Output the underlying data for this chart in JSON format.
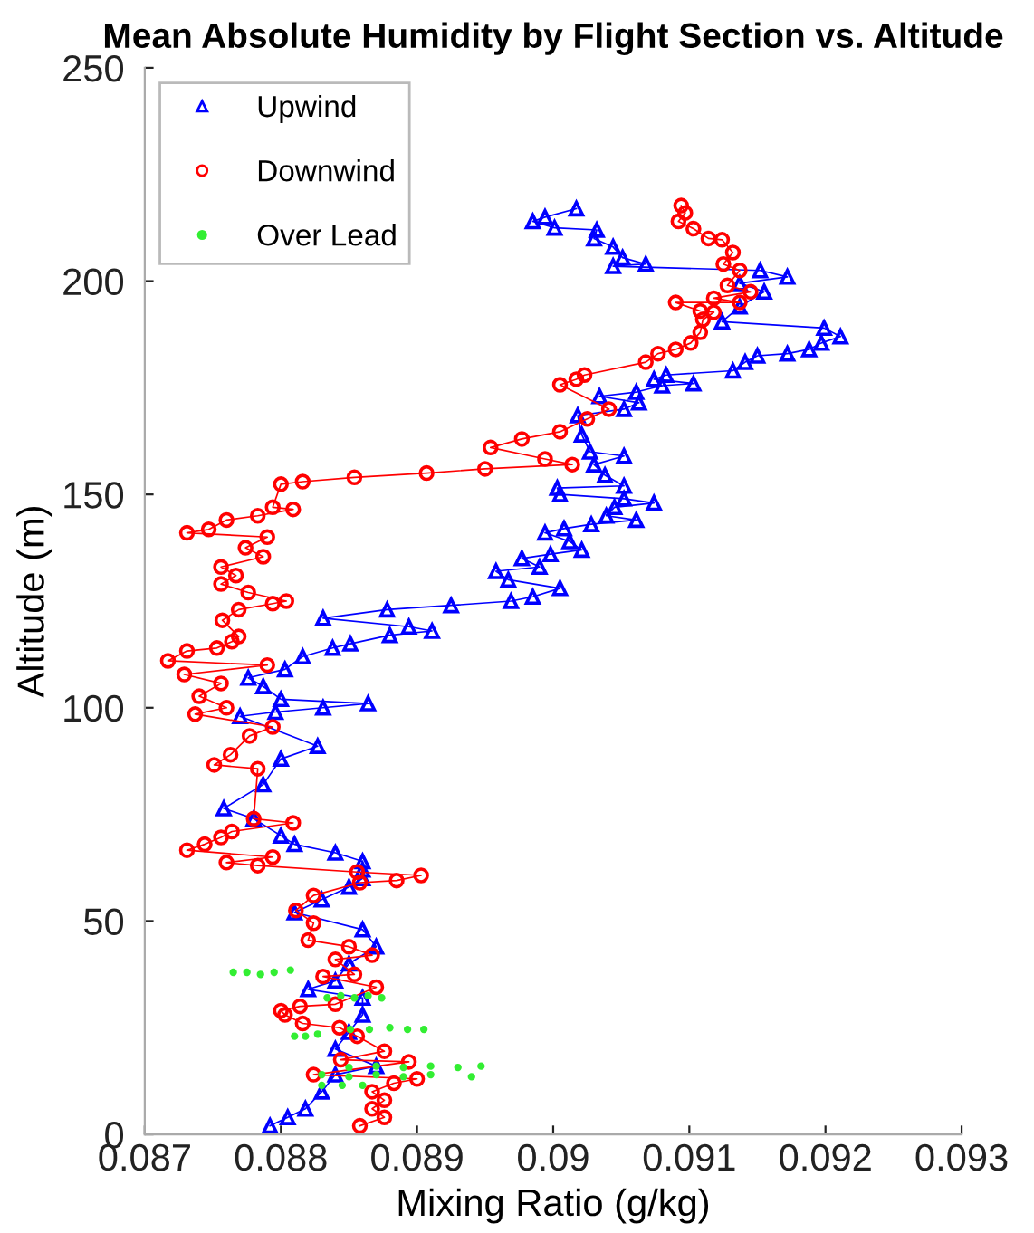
{
  "chart_data": {
    "type": "line",
    "title": "Mean Absolute Humidity by Flight Section vs. Altitude",
    "xlabel": "Mixing Ratio (g/kg)",
    "ylabel": "Altitude (m)",
    "xlim": [
      0.087,
      0.093
    ],
    "xticks": [
      0.087,
      0.088,
      0.089,
      0.09,
      0.091,
      0.092,
      0.093
    ],
    "ylim": [
      0,
      250
    ],
    "yticks": [
      0,
      50,
      100,
      150,
      200,
      250
    ],
    "grid": false,
    "legend": "top left",
    "series": [
      {
        "name": "Upwind",
        "marker": "triangle",
        "color": "#0000ff",
        "x": [
          0.08792,
          0.08805,
          0.08818,
          0.0883,
          0.0884,
          0.0887,
          0.0884,
          0.0885,
          0.0886,
          0.0886,
          0.0882,
          0.0884,
          0.0885,
          0.0887,
          0.0886,
          0.0881,
          0.0883,
          0.0885,
          0.0886,
          0.0886,
          0.0886,
          0.0884,
          0.0881,
          0.088,
          0.0878,
          0.08758,
          0.08787,
          0.088,
          0.08827,
          0.0877,
          0.08796,
          0.08831,
          0.08864,
          0.088,
          0.08787,
          0.08776,
          0.08803,
          0.08816,
          0.08838,
          0.08851,
          0.0888,
          0.08911,
          0.08894,
          0.08831,
          0.08878,
          0.08925,
          0.08969,
          0.08985,
          0.09005,
          0.08967,
          0.08958,
          0.0899,
          0.08977,
          0.08998,
          0.09021,
          0.09012,
          0.08994,
          0.09008,
          0.09028,
          0.09061,
          0.09039,
          0.09045,
          0.09074,
          0.09052,
          0.09005,
          0.09003,
          0.09052,
          0.09038,
          0.0903,
          0.09052,
          0.09027,
          0.09021,
          0.09018,
          0.09052,
          0.09063,
          0.09034,
          0.09061,
          0.0908,
          0.09103,
          0.09074,
          0.09083,
          0.09132,
          0.09141,
          0.0915,
          0.09172,
          0.09188,
          0.09197,
          0.09211,
          0.09199,
          0.09124,
          0.09137,
          0.09155,
          0.09137,
          0.09172,
          0.09152,
          0.09044,
          0.09068,
          0.09051,
          0.09044,
          0.0903,
          0.09032,
          0.09001,
          0.08985,
          0.08994,
          0.09017
        ],
        "values": [
          2,
          4,
          6,
          10,
          14,
          16,
          20,
          24,
          28,
          32,
          34,
          36,
          40,
          44,
          48,
          52,
          55,
          58,
          60,
          62,
          64,
          66,
          68,
          70,
          74,
          76.4,
          82,
          88,
          91,
          98,
          99,
          100,
          101,
          102,
          105,
          107,
          109,
          112,
          114,
          115,
          117,
          118,
          119,
          121,
          123,
          124,
          125,
          126,
          128,
          130,
          132,
          133,
          135,
          136,
          137,
          139,
          141,
          142,
          143,
          144,
          145,
          147,
          148,
          149,
          150,
          151.5,
          152,
          154.5,
          157,
          159,
          160,
          164,
          168.5,
          170,
          171.5,
          173,
          174,
          175.5,
          176,
          177,
          178,
          179,
          181,
          182.5,
          183,
          184,
          185.5,
          187,
          189,
          190.5,
          194,
          197.5,
          199.5,
          201,
          202.5,
          203.5,
          204,
          205.5,
          208,
          210,
          212,
          212.5,
          214,
          215,
          217
        ]
      },
      {
        "name": "Downwind",
        "marker": "circle",
        "color": "#ff0000",
        "x": [
          0.08858,
          0.08876,
          0.08867,
          0.08876,
          0.08867,
          0.08883,
          0.089,
          0.08824,
          0.08894,
          0.08844,
          0.08876,
          0.08856,
          0.08843,
          0.08816,
          0.08803,
          0.088,
          0.08814,
          0.0884,
          0.0887,
          0.08831,
          0.08854,
          0.0884,
          0.08867,
          0.0885,
          0.0882,
          0.08824,
          0.08811,
          0.08824,
          0.08858,
          0.08885,
          0.08903,
          0.08856,
          0.08783,
          0.0876,
          0.08794,
          0.08731,
          0.08744,
          0.08756,
          0.08764,
          0.08809,
          0.0878,
          0.08783,
          0.08751,
          0.08763,
          0.08777,
          0.08794,
          0.08737,
          0.0876,
          0.0874,
          0.08756,
          0.08729,
          0.0879,
          0.08717,
          0.08731,
          0.08753,
          0.08764,
          0.08769,
          0.08757,
          0.08769,
          0.08794,
          0.08804,
          0.08776,
          0.08756,
          0.08767,
          0.08756,
          0.08787,
          0.08774,
          0.0879,
          0.08731,
          0.08747,
          0.0876,
          0.08783,
          0.08809,
          0.08794,
          0.088,
          0.08816,
          0.08854,
          0.08907,
          0.0895,
          0.09014,
          0.08994,
          0.08954,
          0.08977,
          0.09005,
          0.09025,
          0.09041,
          0.09005,
          0.09017,
          0.09023,
          0.09068,
          0.09077,
          0.0909,
          0.09101,
          0.09108,
          0.0911,
          0.09118,
          0.09108,
          0.0909,
          0.09137,
          0.09118,
          0.09145,
          0.09128,
          0.09137,
          0.09125,
          0.09132,
          0.09124,
          0.09114,
          0.09103,
          0.09092,
          0.09097,
          0.09094
        ],
        "values": [
          2,
          4,
          6,
          8,
          10,
          12,
          13,
          14,
          17,
          17.5,
          19.5,
          23,
          25,
          26,
          28,
          29,
          30,
          30.5,
          34.5,
          37,
          37.5,
          41,
          42,
          44,
          45.5,
          49.5,
          52.5,
          56,
          59,
          59.5,
          60.7,
          61.5,
          63,
          63.7,
          65,
          66.6,
          68,
          69.6,
          71,
          73,
          74,
          85.7,
          86.6,
          89,
          93.4,
          95.5,
          98.5,
          100,
          102.7,
          105.7,
          107.8,
          110,
          111,
          113.3,
          114,
          115.5,
          116.7,
          120.5,
          123,
          124.4,
          125,
          127,
          129,
          131,
          133,
          135.4,
          137.5,
          140,
          141,
          141.8,
          144,
          145,
          146.5,
          147,
          152.4,
          153,
          154,
          155,
          156,
          157,
          158.3,
          161,
          163,
          164.7,
          167.7,
          170,
          175.7,
          177,
          178,
          181,
          183,
          184,
          185.5,
          188,
          191,
          192.7,
          193,
          195,
          195,
          196,
          197.5,
          199,
          202.5,
          204,
          206.7,
          209.7,
          210,
          212.3,
          214,
          216,
          217.7
        ]
      },
      {
        "name": "Over Lead",
        "type": "scatter",
        "marker": "circle",
        "color": "#33ee33",
        "x": [
          0.08765,
          0.08775,
          0.08785,
          0.08795,
          0.08807,
          0.08834,
          0.08844,
          0.08854,
          0.08864,
          0.08874,
          0.0881,
          0.08818,
          0.08827,
          0.08851,
          0.08865,
          0.0888,
          0.08893,
          0.08905,
          0.0885,
          0.0887,
          0.0889,
          0.0891,
          0.0893,
          0.08947,
          0.0883,
          0.0885,
          0.0887,
          0.0889,
          0.0891,
          0.0894,
          0.0883,
          0.08845,
          0.0886
        ],
        "values": [
          38,
          38,
          37.5,
          38,
          38.5,
          32,
          32.5,
          32,
          32.5,
          32,
          23,
          23,
          23.5,
          24.6,
          24.6,
          25,
          24.6,
          24.6,
          15.7,
          16,
          15.7,
          16,
          15.7,
          16,
          14,
          13.5,
          14,
          13.5,
          14,
          13.5,
          11.5,
          11.5,
          11.5
        ]
      }
    ]
  }
}
